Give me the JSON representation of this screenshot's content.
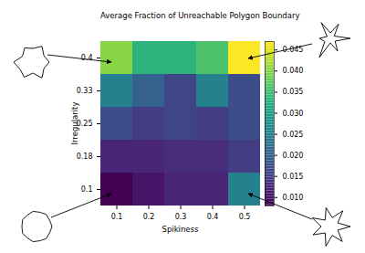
{
  "chart_data": {
    "type": "heatmap",
    "title": "Average Fraction of Unreachable Polygon Boundary",
    "x_label": "Spikiness",
    "y_label": "Irregularity",
    "x_categories": [
      "0.1",
      "0.2",
      "0.3",
      "0.4",
      "0.5"
    ],
    "y_categories": [
      "0.4",
      "0.33",
      "0.25",
      "0.18",
      "0.1"
    ],
    "values": [
      [
        0.04,
        0.033,
        0.033,
        0.036,
        0.047
      ],
      [
        0.025,
        0.02,
        0.016,
        0.025,
        0.017
      ],
      [
        0.017,
        0.015,
        0.016,
        0.015,
        0.017
      ],
      [
        0.012,
        0.012,
        0.013,
        0.013,
        0.015
      ],
      [
        0.008,
        0.01,
        0.012,
        0.012,
        0.025
      ]
    ],
    "color": "viridis",
    "color_range": [
      0.008,
      0.047
    ],
    "color_ticks": [
      {
        "value": 0.01,
        "label": "0.010"
      },
      0.015,
      {
        "value": 0.02,
        "label": "0.020"
      },
      0.025,
      {
        "value": 0.03,
        "label": "0.030"
      },
      0.035,
      {
        "value": 0.04,
        "label": "0.040"
      },
      0.045
    ]
  }
}
